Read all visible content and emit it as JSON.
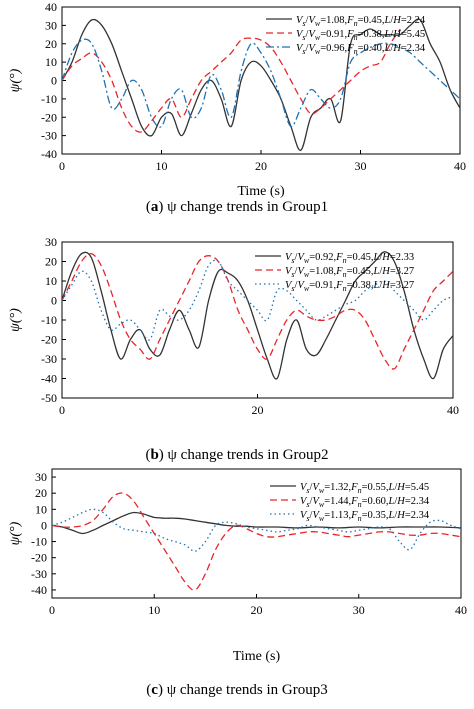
{
  "chart_data": [
    {
      "type": "line",
      "caption_letter": "a",
      "caption_text": "ψ change trends in Group1",
      "xlabel": "Time (s)",
      "ylabel": "ψ(°)",
      "xlim": [
        0,
        40
      ],
      "ylim": [
        -40,
        40
      ],
      "xticks": [
        0,
        10,
        20,
        30,
        40
      ],
      "yticks": [
        -40,
        -30,
        -20,
        -10,
        0,
        10,
        20,
        30,
        40
      ],
      "legend_position": "top-right",
      "series": [
        {
          "name": "Vs/Vw=1.08,Fn=0.45,L/H=2.24",
          "color": "#333333",
          "style": "solid",
          "x": [
            0,
            1,
            2,
            3,
            4,
            5,
            6,
            7,
            8,
            9,
            10,
            11,
            12,
            13,
            14,
            15,
            16,
            17,
            18,
            19,
            20,
            21,
            22,
            23,
            24,
            25,
            26,
            27,
            28,
            29,
            30,
            31,
            32,
            33,
            34,
            35,
            36,
            37,
            38,
            39,
            40
          ],
          "y": [
            0,
            10,
            25,
            33,
            30,
            20,
            5,
            -10,
            -25,
            -30,
            -20,
            -18,
            -30,
            -18,
            -5,
            0,
            -10,
            -25,
            0,
            10,
            8,
            0,
            -10,
            -25,
            -38,
            -20,
            -15,
            -10,
            -22,
            20,
            25,
            28,
            25,
            25,
            25,
            30,
            33,
            20,
            10,
            -5,
            -15
          ]
        },
        {
          "name": "Vs/Vw=0.91,Fn=0.38,L/H=5.45",
          "color": "#e8262a",
          "style": "dashed",
          "x": [
            0,
            1,
            2,
            3,
            4,
            5,
            6,
            7,
            8,
            9,
            10,
            11,
            12,
            13,
            14,
            15,
            16,
            17,
            18,
            19,
            20,
            21,
            22,
            23,
            24,
            25,
            26,
            27,
            28,
            29,
            30,
            31,
            32,
            33,
            34
          ],
          "y": [
            0,
            8,
            12,
            15,
            10,
            0,
            -15,
            -25,
            -28,
            -22,
            -15,
            -10,
            -20,
            -10,
            0,
            5,
            10,
            15,
            22,
            23,
            22,
            18,
            10,
            0,
            -10,
            -18,
            -15,
            -10,
            -5,
            0,
            5,
            8,
            10,
            20,
            28
          ]
        },
        {
          "name": "Vs/Vw=0.96,Fn=0.40,L/H=2.34",
          "color": "#1e73b4",
          "style": "dashdot",
          "x": [
            0,
            1,
            2,
            3,
            4,
            5,
            6,
            7,
            8,
            9,
            10,
            11,
            12,
            13,
            14,
            15,
            16,
            17,
            18,
            19,
            20,
            21,
            22,
            23,
            24,
            25,
            26,
            27,
            28,
            29,
            30,
            31,
            32,
            33,
            34,
            35,
            36,
            37,
            38,
            39,
            40
          ],
          "y": [
            0,
            15,
            22,
            20,
            5,
            -15,
            -10,
            0,
            -5,
            -20,
            -25,
            -10,
            -5,
            -20,
            -15,
            3,
            -5,
            -20,
            5,
            20,
            15,
            5,
            -10,
            -25,
            -15,
            -5,
            -10,
            -15,
            -10,
            10,
            15,
            18,
            20,
            20,
            18,
            15,
            10,
            5,
            0,
            -5,
            -10
          ]
        }
      ]
    },
    {
      "type": "line",
      "caption_letter": "b",
      "caption_text": "ψ change trends in Group2",
      "xlabel": "",
      "ylabel": "ψ(°)",
      "xlim": [
        0,
        40
      ],
      "ylim": [
        -50,
        30
      ],
      "xticks": [
        0,
        20,
        40
      ],
      "yticks": [
        -50,
        -40,
        -30,
        -20,
        -10,
        0,
        10,
        20,
        30
      ],
      "legend_position": "top-right",
      "series": [
        {
          "name": "Vs/Vw=0.92,Fn=0.45,L/H=2.33",
          "color": "#333333",
          "style": "solid",
          "x": [
            0,
            1,
            2,
            3,
            4,
            5,
            6,
            7,
            8,
            9,
            10,
            11,
            12,
            13,
            14,
            15,
            16,
            17,
            18,
            19,
            20,
            21,
            22,
            23,
            24,
            25,
            26,
            27,
            28,
            29,
            30,
            31,
            32,
            33,
            34,
            35,
            36,
            37,
            38,
            39,
            40
          ],
          "y": [
            0,
            15,
            24,
            22,
            5,
            -15,
            -30,
            -20,
            -15,
            -25,
            -28,
            -15,
            -5,
            -15,
            -24,
            0,
            15,
            14,
            10,
            0,
            -15,
            -30,
            -40,
            -20,
            -10,
            -25,
            -28,
            -20,
            -10,
            0,
            10,
            15,
            20,
            25,
            20,
            5,
            -15,
            -30,
            -40,
            -25,
            -18
          ]
        },
        {
          "name": "Vs/Vw=1.08,Fn=0.45,L/H=3.27",
          "color": "#e8262a",
          "style": "dashed",
          "x": [
            0,
            1,
            2,
            3,
            4,
            5,
            6,
            7,
            8,
            9,
            10,
            11,
            12,
            13,
            14,
            15,
            16,
            17,
            18,
            19,
            20,
            21,
            22,
            23,
            24,
            25,
            26,
            27,
            28,
            29,
            30,
            31,
            32,
            33,
            34,
            35,
            36,
            37,
            38,
            39,
            40
          ],
          "y": [
            0,
            10,
            20,
            24,
            18,
            5,
            -10,
            -20,
            -25,
            -30,
            -20,
            -10,
            0,
            10,
            20,
            23,
            20,
            10,
            -5,
            -15,
            -25,
            -30,
            -20,
            -10,
            -5,
            -8,
            -10,
            -10,
            -8,
            -5,
            -5,
            -10,
            -20,
            -30,
            -35,
            -25,
            -15,
            -5,
            5,
            10,
            15
          ]
        },
        {
          "name": "Vs/Vw=0.91,Fn=0.38,L/H=3.27",
          "color": "#1e73b4",
          "style": "dotted",
          "x": [
            0,
            1,
            2,
            3,
            4,
            5,
            6,
            7,
            8,
            9,
            10,
            11,
            12,
            13,
            14,
            15,
            16,
            17,
            18,
            19,
            20,
            21,
            22,
            23,
            24,
            25,
            26,
            27,
            28,
            29,
            30,
            31,
            32,
            33,
            34,
            35,
            36,
            37,
            38,
            39,
            40
          ],
          "y": [
            0,
            8,
            15,
            10,
            -5,
            -15,
            -12,
            -10,
            -15,
            -20,
            -5,
            -8,
            -10,
            -5,
            5,
            18,
            20,
            10,
            5,
            0,
            -5,
            -10,
            5,
            5,
            0,
            -5,
            -10,
            -8,
            -5,
            -2,
            0,
            5,
            8,
            10,
            5,
            0,
            -5,
            -10,
            -5,
            0,
            2
          ]
        }
      ]
    },
    {
      "type": "line",
      "caption_letter": "c",
      "caption_text": "ψ change trends in Group3",
      "xlabel": "Time (s)",
      "ylabel": "ψ(°)",
      "xlim": [
        0,
        40
      ],
      "ylim": [
        -45,
        35
      ],
      "xticks": [
        0,
        10,
        20,
        30,
        40
      ],
      "yticks": [
        -40,
        -30,
        -20,
        -10,
        0,
        10,
        20,
        30
      ],
      "legend_position": "top-right",
      "series": [
        {
          "name": "Vs/Vw=1.32,Fn=0.55,L/H=5.45",
          "color": "#333333",
          "style": "solid",
          "x": [
            0,
            1,
            2,
            3,
            4,
            5,
            6,
            7,
            8,
            9,
            10,
            11,
            12,
            13,
            14,
            15,
            16,
            17,
            18,
            19,
            20,
            22,
            24,
            26,
            28,
            30,
            32,
            34,
            36,
            38,
            40
          ],
          "y": [
            0,
            -1,
            -3,
            -5,
            -3,
            0,
            3,
            6,
            8,
            7,
            5,
            4.5,
            4.5,
            4,
            3,
            2,
            1,
            0,
            -0.5,
            -0.5,
            -1,
            -1,
            -1.5,
            -1,
            -1.5,
            -1,
            -1.5,
            -1,
            -1,
            -1,
            -1.5
          ]
        },
        {
          "name": "Vs/Vw=1.44,Fn=0.60,L/H=2.34",
          "color": "#e8262a",
          "style": "dashed",
          "x": [
            0,
            1,
            2,
            3,
            4,
            5,
            6,
            7,
            8,
            9,
            10,
            11,
            12,
            13,
            14,
            15,
            16,
            17,
            18,
            19,
            20,
            21,
            22,
            23,
            24,
            25,
            26,
            27,
            28,
            29,
            30,
            31,
            32,
            33,
            34,
            35,
            36,
            37,
            38,
            39,
            40
          ],
          "y": [
            0,
            -1,
            -1,
            0,
            3,
            10,
            18,
            20,
            15,
            5,
            -5,
            -15,
            -25,
            -35,
            -40,
            -30,
            -15,
            -5,
            0,
            -2,
            -5,
            -7,
            -7,
            -6,
            -5,
            -4,
            -4,
            -5,
            -6,
            -7,
            -6,
            -5,
            -4,
            -4,
            -5,
            -6,
            -6,
            -5,
            -5,
            -6,
            -7
          ]
        },
        {
          "name": "Vs/Vw=1.13,Fn=0.35,L/H=2.34",
          "color": "#1e73b4",
          "style": "dotted",
          "x": [
            0,
            1,
            2,
            3,
            4,
            5,
            6,
            7,
            8,
            9,
            10,
            11,
            12,
            13,
            14,
            15,
            16,
            17,
            18,
            19,
            20,
            21,
            22,
            23,
            24,
            25,
            26,
            27,
            28,
            29,
            30,
            31,
            32,
            33,
            34,
            35,
            36,
            37,
            38,
            39,
            40
          ],
          "y": [
            0,
            2,
            5,
            8,
            10,
            8,
            2,
            -2,
            -3,
            -4,
            -5,
            -8,
            -10,
            -12,
            -16,
            -10,
            0,
            2,
            1,
            -1,
            -2,
            -3,
            -4,
            -3,
            -2,
            0,
            -1,
            -2,
            -3,
            -4,
            -3,
            -2,
            -1,
            -2,
            -10,
            -15,
            -5,
            2,
            3,
            0,
            -2
          ]
        }
      ]
    }
  ]
}
